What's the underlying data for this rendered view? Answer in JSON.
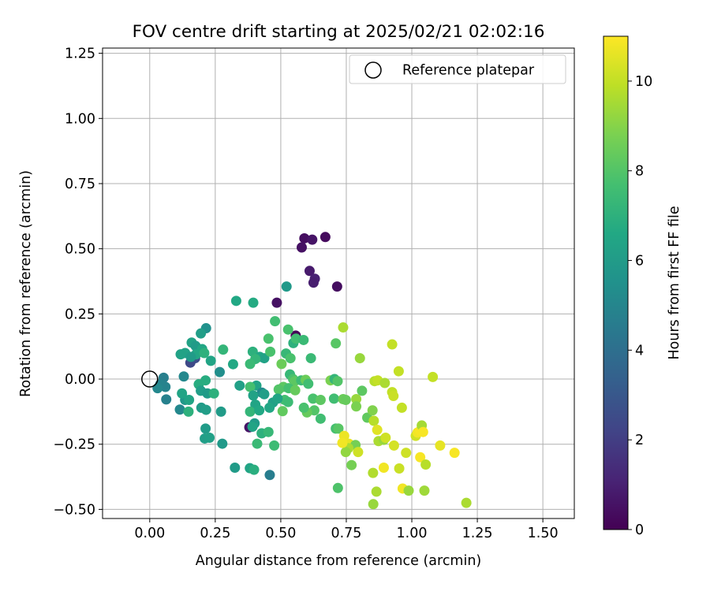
{
  "chart_data": {
    "type": "scatter",
    "title": "FOV centre drift starting at 2025/02/21 02:02:16",
    "xlabel": "Angular distance from reference (arcmin)",
    "ylabel": "Rotation from reference (arcmin)",
    "xlim": [
      -0.18,
      1.62
    ],
    "ylim": [
      -0.535,
      1.27
    ],
    "xticks": [
      "0.00",
      "0.25",
      "0.50",
      "0.75",
      "1.00",
      "1.25",
      "1.50"
    ],
    "yticks": [
      "−0.50",
      "−0.25",
      "0.00",
      "0.25",
      "0.50",
      "0.75",
      "1.00",
      "1.25"
    ],
    "grid": true,
    "legend": {
      "placement": "top-right",
      "entries": [
        "Reference platepar"
      ]
    },
    "reference_point": {
      "x": 0.0,
      "y": 0.0
    },
    "colorbar": {
      "label": "Hours from first FF file",
      "range": [
        0,
        11
      ],
      "ticks": [
        "0",
        "2",
        "4",
        "6",
        "8",
        "10"
      ],
      "colormap": "viridis"
    },
    "series": [
      {
        "points": [
          {
            "x": 0.67,
            "y": 0.545,
            "c": 0.3
          },
          {
            "x": 0.59,
            "y": 0.54,
            "c": 0.4
          },
          {
            "x": 0.62,
            "y": 0.535,
            "c": 0.6
          },
          {
            "x": 0.58,
            "y": 0.505,
            "c": 0.5
          },
          {
            "x": 0.61,
            "y": 0.415,
            "c": 0.8
          },
          {
            "x": 0.63,
            "y": 0.385,
            "c": 1.0
          },
          {
            "x": 0.625,
            "y": 0.37,
            "c": 0.9
          },
          {
            "x": 0.715,
            "y": 0.355,
            "c": 0.4
          },
          {
            "x": 0.485,
            "y": 0.293,
            "c": 0.5
          },
          {
            "x": 0.557,
            "y": 0.167,
            "c": 0.1
          },
          {
            "x": 0.38,
            "y": -0.185,
            "c": 0.6
          },
          {
            "x": 0.155,
            "y": 0.063,
            "c": 2.4
          },
          {
            "x": 0.173,
            "y": 0.08,
            "c": 2.6
          },
          {
            "x": 0.458,
            "y": -0.368,
            "c": 4.6
          },
          {
            "x": 0.053,
            "y": 0.005,
            "c": 4.7
          },
          {
            "x": 0.04,
            "y": -0.02,
            "c": 4.9
          },
          {
            "x": 0.06,
            "y": -0.03,
            "c": 4.9
          },
          {
            "x": 0.03,
            "y": -0.035,
            "c": 5.1
          },
          {
            "x": 0.063,
            "y": -0.078,
            "c": 4.8
          },
          {
            "x": 0.115,
            "y": -0.117,
            "c": 5.1
          },
          {
            "x": 0.13,
            "y": 0.01,
            "c": 5.1
          },
          {
            "x": 0.135,
            "y": -0.08,
            "c": 5.8
          },
          {
            "x": 0.215,
            "y": 0.195,
            "c": 5.5
          },
          {
            "x": 0.195,
            "y": 0.175,
            "c": 6.1
          },
          {
            "x": 0.16,
            "y": 0.14,
            "c": 6.3
          },
          {
            "x": 0.175,
            "y": 0.127,
            "c": 6.0
          },
          {
            "x": 0.2,
            "y": 0.115,
            "c": 6.5
          },
          {
            "x": 0.118,
            "y": 0.095,
            "c": 6.3
          },
          {
            "x": 0.135,
            "y": 0.1,
            "c": 6.3
          },
          {
            "x": 0.177,
            "y": 0.095,
            "c": 6.5
          },
          {
            "x": 0.157,
            "y": 0.085,
            "c": 6.0
          },
          {
            "x": 0.208,
            "y": 0.1,
            "c": 7.0
          },
          {
            "x": 0.233,
            "y": 0.07,
            "c": 6.4
          },
          {
            "x": 0.267,
            "y": 0.027,
            "c": 5.4
          },
          {
            "x": 0.318,
            "y": 0.057,
            "c": 6.6
          },
          {
            "x": 0.28,
            "y": 0.113,
            "c": 7.2
          },
          {
            "x": 0.187,
            "y": -0.02,
            "c": 6.8
          },
          {
            "x": 0.213,
            "y": -0.005,
            "c": 6.8
          },
          {
            "x": 0.195,
            "y": -0.045,
            "c": 6.1
          },
          {
            "x": 0.22,
            "y": -0.055,
            "c": 6.0
          },
          {
            "x": 0.123,
            "y": -0.055,
            "c": 6.4
          },
          {
            "x": 0.15,
            "y": -0.08,
            "c": 6.4
          },
          {
            "x": 0.197,
            "y": -0.11,
            "c": 6.0
          },
          {
            "x": 0.215,
            "y": -0.118,
            "c": 6.1
          },
          {
            "x": 0.245,
            "y": -0.055,
            "c": 7.0
          },
          {
            "x": 0.148,
            "y": -0.125,
            "c": 7.0
          },
          {
            "x": 0.272,
            "y": -0.125,
            "c": 6.0
          },
          {
            "x": 0.213,
            "y": -0.19,
            "c": 6.0
          },
          {
            "x": 0.21,
            "y": -0.228,
            "c": 6.1
          },
          {
            "x": 0.228,
            "y": -0.225,
            "c": 6.2
          },
          {
            "x": 0.277,
            "y": -0.248,
            "c": 5.9
          },
          {
            "x": 0.33,
            "y": 0.3,
            "c": 6.6
          },
          {
            "x": 0.395,
            "y": 0.293,
            "c": 6.7
          },
          {
            "x": 0.522,
            "y": 0.355,
            "c": 5.9
          },
          {
            "x": 0.393,
            "y": 0.105,
            "c": 7.0
          },
          {
            "x": 0.42,
            "y": 0.085,
            "c": 6.5
          },
          {
            "x": 0.437,
            "y": 0.08,
            "c": 6.3
          },
          {
            "x": 0.403,
            "y": 0.077,
            "c": 7.2
          },
          {
            "x": 0.383,
            "y": 0.058,
            "c": 7.4
          },
          {
            "x": 0.407,
            "y": -0.025,
            "c": 6.4
          },
          {
            "x": 0.428,
            "y": -0.052,
            "c": 5.2
          },
          {
            "x": 0.437,
            "y": -0.058,
            "c": 6.1
          },
          {
            "x": 0.383,
            "y": -0.03,
            "c": 7.7
          },
          {
            "x": 0.343,
            "y": -0.025,
            "c": 6.2
          },
          {
            "x": 0.395,
            "y": -0.063,
            "c": 6.3
          },
          {
            "x": 0.403,
            "y": -0.098,
            "c": 6.4
          },
          {
            "x": 0.383,
            "y": -0.125,
            "c": 7.2
          },
          {
            "x": 0.418,
            "y": -0.12,
            "c": 6.6
          },
          {
            "x": 0.47,
            "y": -0.09,
            "c": 6.2
          },
          {
            "x": 0.457,
            "y": -0.11,
            "c": 6.5
          },
          {
            "x": 0.4,
            "y": -0.17,
            "c": 6.0
          },
          {
            "x": 0.392,
            "y": -0.183,
            "c": 6.4
          },
          {
            "x": 0.427,
            "y": -0.208,
            "c": 7.0
          },
          {
            "x": 0.41,
            "y": -0.248,
            "c": 7.4
          },
          {
            "x": 0.453,
            "y": -0.203,
            "c": 7.3
          },
          {
            "x": 0.475,
            "y": -0.255,
            "c": 7.5
          },
          {
            "x": 0.325,
            "y": -0.34,
            "c": 6.0
          },
          {
            "x": 0.382,
            "y": -0.342,
            "c": 6.4
          },
          {
            "x": 0.398,
            "y": -0.348,
            "c": 6.9
          },
          {
            "x": 0.453,
            "y": 0.155,
            "c": 7.8
          },
          {
            "x": 0.478,
            "y": 0.222,
            "c": 7.6
          },
          {
            "x": 0.528,
            "y": 0.19,
            "c": 7.8
          },
          {
            "x": 0.46,
            "y": 0.105,
            "c": 7.8
          },
          {
            "x": 0.52,
            "y": 0.098,
            "c": 7.3
          },
          {
            "x": 0.537,
            "y": 0.08,
            "c": 7.8
          },
          {
            "x": 0.548,
            "y": 0.138,
            "c": 7.0
          },
          {
            "x": 0.558,
            "y": 0.155,
            "c": 7.6
          },
          {
            "x": 0.587,
            "y": 0.15,
            "c": 7.4
          },
          {
            "x": 0.503,
            "y": 0.058,
            "c": 8.5
          },
          {
            "x": 0.535,
            "y": 0.018,
            "c": 7.3
          },
          {
            "x": 0.547,
            "y": 0.0,
            "c": 7.8
          },
          {
            "x": 0.553,
            "y": -0.008,
            "c": 8.2
          },
          {
            "x": 0.578,
            "y": -0.005,
            "c": 7.5
          },
          {
            "x": 0.595,
            "y": -0.003,
            "c": 8.5
          },
          {
            "x": 0.605,
            "y": -0.018,
            "c": 7.6
          },
          {
            "x": 0.51,
            "y": -0.03,
            "c": 8.2
          },
          {
            "x": 0.492,
            "y": -0.04,
            "c": 8.0
          },
          {
            "x": 0.53,
            "y": -0.035,
            "c": 7.7
          },
          {
            "x": 0.555,
            "y": -0.043,
            "c": 8.4
          },
          {
            "x": 0.515,
            "y": -0.08,
            "c": 7.7
          },
          {
            "x": 0.488,
            "y": -0.075,
            "c": 6.4
          },
          {
            "x": 0.528,
            "y": -0.088,
            "c": 7.5
          },
          {
            "x": 0.615,
            "y": 0.08,
            "c": 7.4
          },
          {
            "x": 0.623,
            "y": -0.075,
            "c": 7.8
          },
          {
            "x": 0.652,
            "y": -0.08,
            "c": 8.2
          },
          {
            "x": 0.628,
            "y": -0.12,
            "c": 8.0
          },
          {
            "x": 0.6,
            "y": -0.128,
            "c": 8.4
          },
          {
            "x": 0.588,
            "y": -0.11,
            "c": 7.8
          },
          {
            "x": 0.652,
            "y": -0.152,
            "c": 7.6
          },
          {
            "x": 0.507,
            "y": -0.123,
            "c": 8.3
          },
          {
            "x": 0.69,
            "y": -0.005,
            "c": 8.8
          },
          {
            "x": 0.705,
            "y": 0.0,
            "c": 7.2
          },
          {
            "x": 0.717,
            "y": -0.008,
            "c": 8.0
          },
          {
            "x": 0.71,
            "y": 0.137,
            "c": 8.1
          },
          {
            "x": 0.703,
            "y": -0.075,
            "c": 7.6
          },
          {
            "x": 0.738,
            "y": -0.077,
            "c": 8.5
          },
          {
            "x": 0.748,
            "y": -0.08,
            "c": 8.4
          },
          {
            "x": 0.71,
            "y": -0.19,
            "c": 7.7
          },
          {
            "x": 0.72,
            "y": -0.19,
            "c": 8.1
          },
          {
            "x": 0.718,
            "y": -0.418,
            "c": 7.9
          },
          {
            "x": 0.738,
            "y": 0.198,
            "c": 9.6
          },
          {
            "x": 0.802,
            "y": 0.08,
            "c": 9.3
          },
          {
            "x": 0.81,
            "y": -0.045,
            "c": 8.2
          },
          {
            "x": 0.788,
            "y": -0.077,
            "c": 9.3
          },
          {
            "x": 0.788,
            "y": -0.105,
            "c": 8.8
          },
          {
            "x": 0.83,
            "y": -0.148,
            "c": 8.3
          },
          {
            "x": 0.85,
            "y": -0.12,
            "c": 8.9
          },
          {
            "x": 0.76,
            "y": -0.248,
            "c": 10.6
          },
          {
            "x": 0.785,
            "y": -0.253,
            "c": 8.7
          },
          {
            "x": 0.795,
            "y": -0.28,
            "c": 10.2
          },
          {
            "x": 0.758,
            "y": -0.265,
            "c": 9.6
          },
          {
            "x": 0.748,
            "y": -0.28,
            "c": 9.2
          },
          {
            "x": 0.742,
            "y": -0.218,
            "c": 10.7
          },
          {
            "x": 0.735,
            "y": -0.245,
            "c": 10.8
          },
          {
            "x": 0.77,
            "y": -0.33,
            "c": 8.7
          },
          {
            "x": 0.858,
            "y": -0.008,
            "c": 9.8
          },
          {
            "x": 0.87,
            "y": -0.005,
            "c": 10.0
          },
          {
            "x": 0.897,
            "y": -0.015,
            "c": 9.6
          },
          {
            "x": 0.925,
            "y": 0.133,
            "c": 10.0
          },
          {
            "x": 0.95,
            "y": 0.03,
            "c": 10.0
          },
          {
            "x": 0.925,
            "y": -0.05,
            "c": 10.0
          },
          {
            "x": 0.93,
            "y": -0.065,
            "c": 10.1
          },
          {
            "x": 0.962,
            "y": -0.11,
            "c": 10.0
          },
          {
            "x": 0.855,
            "y": -0.16,
            "c": 9.8
          },
          {
            "x": 0.868,
            "y": -0.195,
            "c": 10.5
          },
          {
            "x": 0.873,
            "y": -0.238,
            "c": 9.6
          },
          {
            "x": 0.893,
            "y": -0.233,
            "c": 9.3
          },
          {
            "x": 0.9,
            "y": -0.225,
            "c": 10.2
          },
          {
            "x": 0.932,
            "y": -0.255,
            "c": 10.3
          },
          {
            "x": 0.978,
            "y": -0.283,
            "c": 10.2
          },
          {
            "x": 0.952,
            "y": -0.343,
            "c": 10.1
          },
          {
            "x": 0.893,
            "y": -0.34,
            "c": 10.8
          },
          {
            "x": 0.852,
            "y": -0.36,
            "c": 9.7
          },
          {
            "x": 0.865,
            "y": -0.432,
            "c": 9.6
          },
          {
            "x": 0.853,
            "y": -0.48,
            "c": 9.3
          },
          {
            "x": 0.965,
            "y": -0.42,
            "c": 10.8
          },
          {
            "x": 0.988,
            "y": -0.428,
            "c": 9.3
          },
          {
            "x": 1.015,
            "y": -0.218,
            "c": 10.2
          },
          {
            "x": 1.022,
            "y": -0.205,
            "c": 10.8
          },
          {
            "x": 1.032,
            "y": -0.198,
            "c": 10.9
          },
          {
            "x": 1.038,
            "y": -0.178,
            "c": 9.5
          },
          {
            "x": 1.043,
            "y": -0.203,
            "c": 10.9
          },
          {
            "x": 1.032,
            "y": -0.3,
            "c": 10.9
          },
          {
            "x": 1.053,
            "y": -0.328,
            "c": 9.8
          },
          {
            "x": 1.048,
            "y": -0.428,
            "c": 9.4
          },
          {
            "x": 1.08,
            "y": 0.008,
            "c": 10.0
          },
          {
            "x": 1.108,
            "y": -0.255,
            "c": 10.6
          },
          {
            "x": 1.163,
            "y": -0.283,
            "c": 10.9
          },
          {
            "x": 1.208,
            "y": -0.475,
            "c": 9.6
          }
        ]
      }
    ]
  }
}
